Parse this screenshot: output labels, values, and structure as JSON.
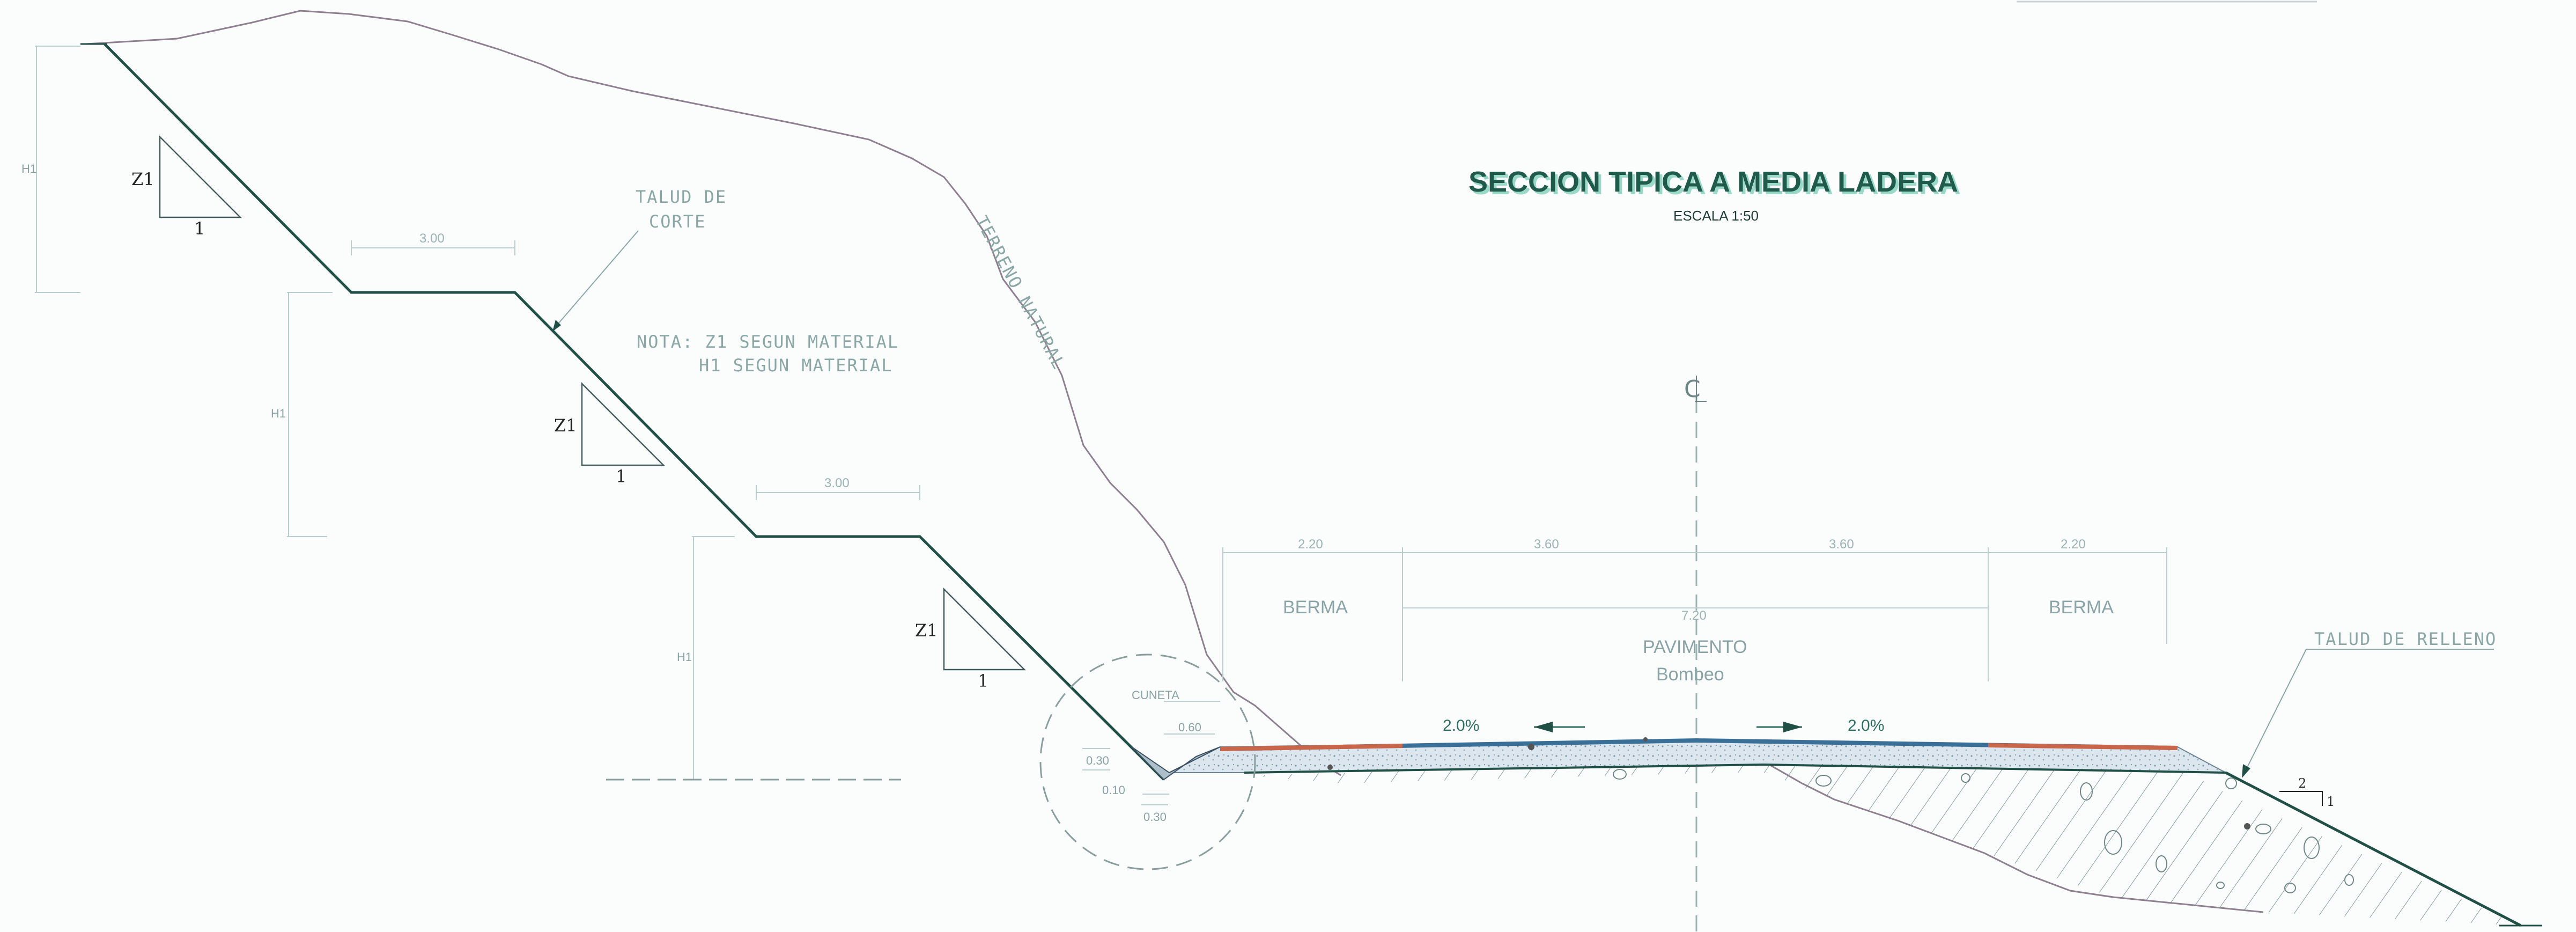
{
  "title": "SECCION TIPICA A MEDIA LADERA",
  "scale": "ESCALA 1:50",
  "terrain_label": "TERRENO NATURAL",
  "cut_slope_label_1": "TALUD DE",
  "cut_slope_label_2": "CORTE",
  "note_line_1": "NOTA:  Z1  SEGUN MATERIAL",
  "note_line_2": "H1  SEGUN MATERIAL",
  "fill_slope_label": "TALUD DE RELLENO",
  "centerline_symbol": "CL",
  "berma_left": "BERMA",
  "berma_right": "BERMA",
  "pavimento": "PAVIMENTO",
  "bombeo": "Bombeo",
  "slope_left": "2.0%",
  "slope_right": "2.0%",
  "slope_ratios": {
    "z": "Z1",
    "one": "1",
    "fill_two": "2",
    "fill_one": "1"
  },
  "dimensions": {
    "h1": "H1",
    "bench_width": "3.00",
    "berma_left_width": "2.20",
    "lane_left_width": "3.60",
    "lane_right_width": "3.60",
    "berma_right_width": "2.20",
    "total_width": "7.20",
    "ditch_top": "0.60",
    "ditch_depth": "0.30",
    "ditch_bottom": "0.10",
    "ditch_base": "0.30",
    "ditch_detail": "CUNETA"
  },
  "colors": {
    "section_line": "#1f4f45",
    "terrain_line": "#8e7f91",
    "pavement": "#3a6f97",
    "shoulder": "#c9664a",
    "title": "#1f5a4a"
  }
}
